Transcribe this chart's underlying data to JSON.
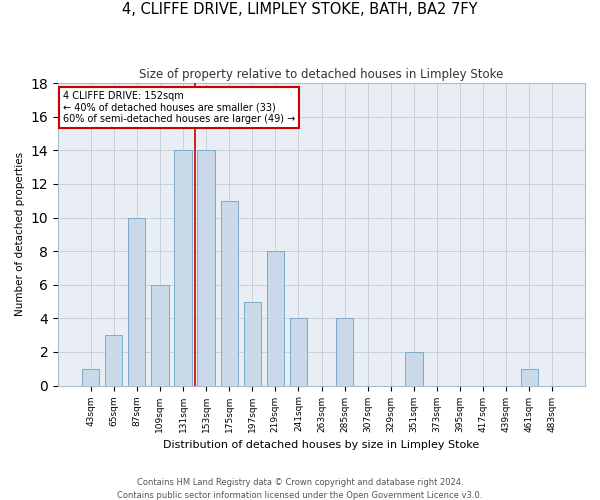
{
  "title": "4, CLIFFE DRIVE, LIMPLEY STOKE, BATH, BA2 7FY",
  "subtitle": "Size of property relative to detached houses in Limpley Stoke",
  "xlabel": "Distribution of detached houses by size in Limpley Stoke",
  "ylabel": "Number of detached properties",
  "footer_line1": "Contains HM Land Registry data © Crown copyright and database right 2024.",
  "footer_line2": "Contains public sector information licensed under the Open Government Licence v3.0.",
  "categories": [
    "43sqm",
    "65sqm",
    "87sqm",
    "109sqm",
    "131sqm",
    "153sqm",
    "175sqm",
    "197sqm",
    "219sqm",
    "241sqm",
    "263sqm",
    "285sqm",
    "307sqm",
    "329sqm",
    "351sqm",
    "373sqm",
    "395sqm",
    "417sqm",
    "439sqm",
    "461sqm",
    "483sqm"
  ],
  "values": [
    1,
    3,
    10,
    6,
    14,
    14,
    11,
    5,
    8,
    4,
    0,
    4,
    0,
    0,
    2,
    0,
    0,
    0,
    0,
    1,
    0
  ],
  "bar_color": "#c9d9ea",
  "bar_edge_color": "#7aaacb",
  "grid_color": "#c8d0d8",
  "background_color": "#e8eef4",
  "annotation_line1": "4 CLIFFE DRIVE: 152sqm",
  "annotation_line2": "← 40% of detached houses are smaller (33)",
  "annotation_line3": "60% of semi-detached houses are larger (49) →",
  "annotation_box_color": "#ffffff",
  "annotation_border_color": "#cc0000",
  "property_line_color": "#cc0000",
  "property_line_x": 4.5,
  "ylim": [
    0,
    18
  ],
  "yticks": [
    0,
    2,
    4,
    6,
    8,
    10,
    12,
    14,
    16,
    18
  ],
  "bar_width": 0.75
}
